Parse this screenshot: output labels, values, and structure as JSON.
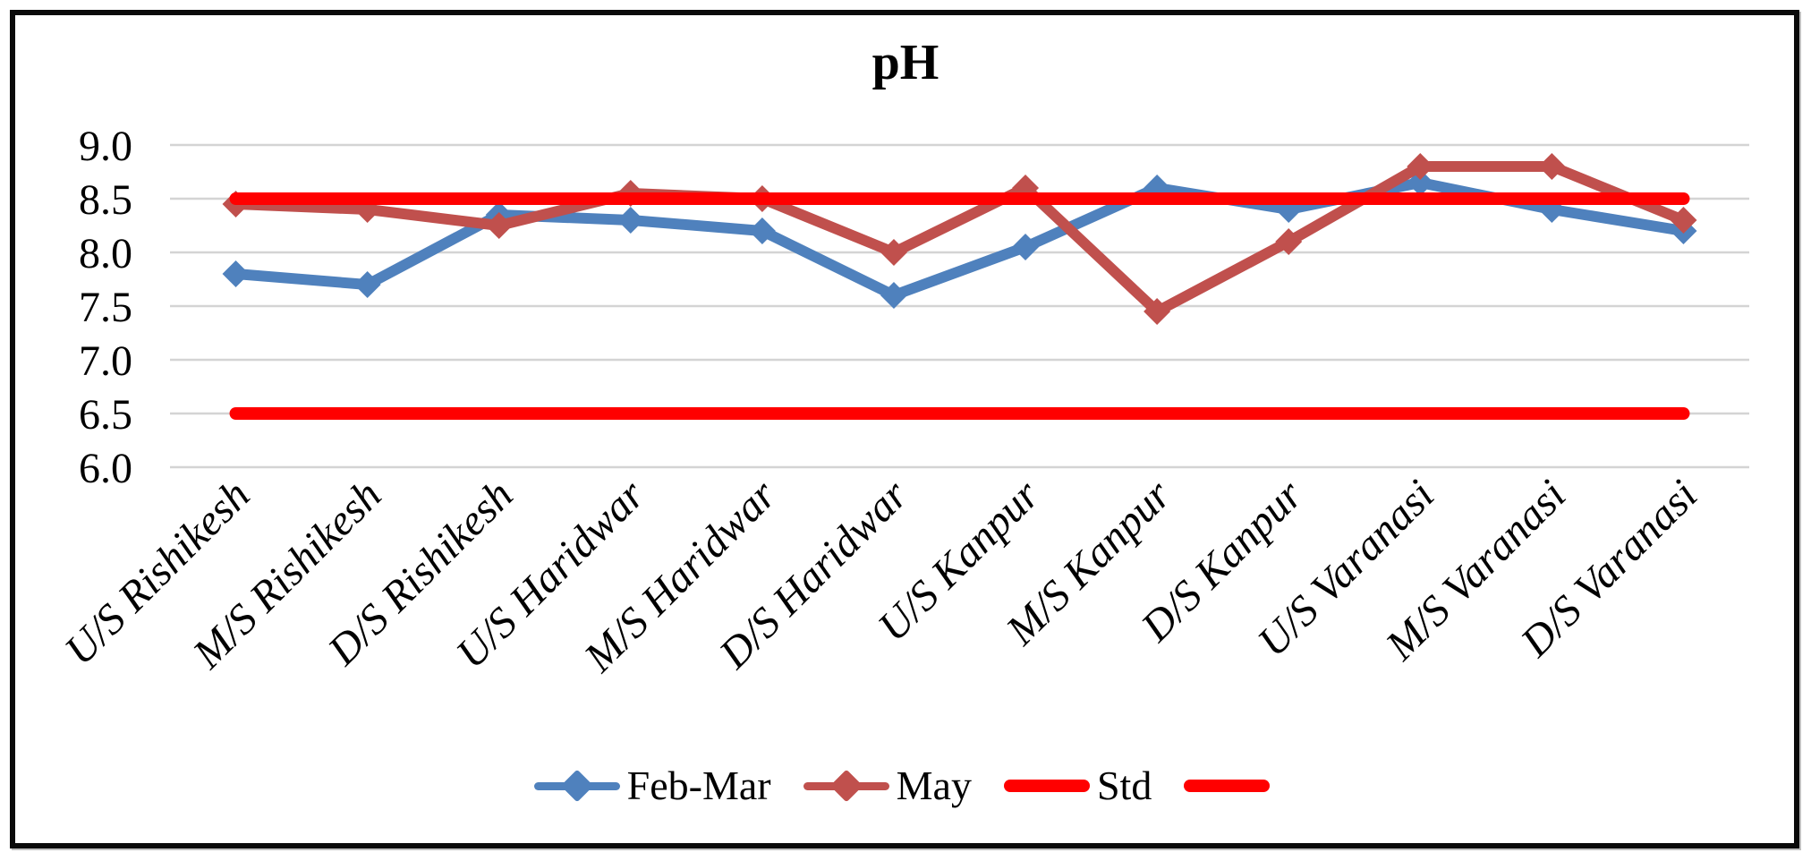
{
  "figure": {
    "title": "pH"
  },
  "chart_data": {
    "type": "line",
    "title": "pH",
    "categories": [
      "U/S Rishikesh",
      "M/S Rishikesh",
      "D/S Rishikesh",
      "U/S Haridwar",
      "M/S Haridwar",
      "D/S Haridwar",
      "U/S Kanpur",
      "M/S Kanpur",
      "D/S Kanpur",
      "U/S Varanasi",
      "M/S Varanasi",
      "D/S Varanasi"
    ],
    "series": [
      {
        "name": "Feb-Mar",
        "color": "#4F81BD",
        "marker": "diamond",
        "values": [
          7.8,
          7.7,
          8.35,
          8.3,
          8.2,
          7.6,
          8.05,
          8.6,
          8.4,
          8.65,
          8.4,
          8.2
        ]
      },
      {
        "name": "May",
        "color": "#C0504D",
        "marker": "diamond",
        "values": [
          8.45,
          8.4,
          8.25,
          8.55,
          8.5,
          8.0,
          8.6,
          7.45,
          8.1,
          8.8,
          8.8,
          8.3
        ]
      },
      {
        "name": "Std",
        "color": "#FF0000",
        "marker": "none",
        "values": [
          8.5,
          8.5,
          8.5,
          8.5,
          8.5,
          8.5,
          8.5,
          8.5,
          8.5,
          8.5,
          8.5,
          8.5
        ]
      },
      {
        "name": "",
        "color": "#FF0000",
        "marker": "none",
        "values": [
          6.5,
          6.5,
          6.5,
          6.5,
          6.5,
          6.5,
          6.5,
          6.5,
          6.5,
          6.5,
          6.5,
          6.5
        ]
      }
    ],
    "ylim": [
      6.0,
      9.0
    ],
    "ytick_step": 0.5,
    "ytick_labels": [
      "9.0",
      "8.5",
      "8.0",
      "7.5",
      "7.0",
      "6.5",
      "6.0"
    ],
    "xlabel": "",
    "ylabel": "",
    "grid": "horizontal",
    "gridline_color": "#D4D4D4",
    "text_color": "#000000",
    "legend_position": "bottom"
  }
}
